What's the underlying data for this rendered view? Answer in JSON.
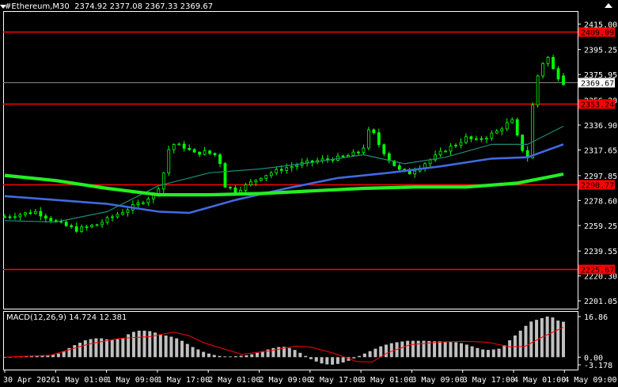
{
  "header": {
    "symbol_timeframe": "#Ethereum,M30",
    "open": "2374.92",
    "high": "2377.08",
    "low": "2367.33",
    "close": "2369.67"
  },
  "macd_header": {
    "label": "MACD(12,26,9)",
    "main": "14.724",
    "signal": "12.381"
  },
  "colors": {
    "background": "#000000",
    "candle": "#00ff00",
    "level_line": "#ff0000",
    "ma_fast": "#1e8c78",
    "ma_mid": "#4169e1",
    "ma_slow": "#22ee22",
    "histogram": "#c0c0c0",
    "signal_line": "#ff0000",
    "axis": "#ffffff"
  },
  "chart_data": [
    {
      "type": "candlestick",
      "title": "#Ethereum,M30",
      "ylim": [
        2195,
        2425
      ],
      "price_ticks": [
        "2415.00",
        "2395.25",
        "2375.95",
        "2356.20",
        "2336.90",
        "2317.65",
        "2297.85",
        "2278.60",
        "2259.25",
        "2239.55",
        "2220.30",
        "2201.05"
      ],
      "levels": [
        {
          "value": 2409.09,
          "label": "2409.09"
        },
        {
          "value": 2353.24,
          "label": "2353.24"
        },
        {
          "value": 2290.77,
          "label": "2290.77"
        },
        {
          "value": 2225.67,
          "label": "2225.67"
        }
      ],
      "current_price": {
        "value": 2369.67,
        "label": "2369.67"
      },
      "time_labels": [
        "30 Apr 2026",
        "1 May 01:00",
        "1 May 09:00",
        "1 May 17:00",
        "2 May 01:00",
        "2 May 09:00",
        "2 May 17:00",
        "3 May 01:00",
        "3 May 09:00",
        "3 May 17:00",
        "4 May 01:00",
        "4 May 09:00"
      ],
      "price_path": [
        [
          0,
          2266
        ],
        [
          6,
          2270
        ],
        [
          10,
          2262
        ],
        [
          14,
          2256
        ],
        [
          18,
          2260
        ],
        [
          22,
          2268
        ],
        [
          24,
          2272
        ],
        [
          26,
          2276
        ],
        [
          29,
          2283
        ],
        [
          30,
          2289
        ],
        [
          31,
          2300
        ],
        [
          32,
          2318
        ],
        [
          33,
          2322
        ],
        [
          35,
          2320
        ],
        [
          37,
          2315
        ],
        [
          39,
          2316
        ],
        [
          41,
          2314
        ],
        [
          42,
          2308
        ],
        [
          43,
          2290
        ],
        [
          45,
          2286
        ],
        [
          47,
          2290
        ],
        [
          50,
          2297
        ],
        [
          54,
          2303
        ],
        [
          58,
          2307
        ],
        [
          62,
          2310
        ],
        [
          66,
          2312
        ],
        [
          69,
          2316
        ],
        [
          70,
          2320
        ],
        [
          71,
          2332
        ],
        [
          72,
          2330
        ],
        [
          73,
          2322
        ],
        [
          75,
          2310
        ],
        [
          77,
          2302
        ],
        [
          79,
          2300
        ],
        [
          81,
          2305
        ],
        [
          83,
          2310
        ],
        [
          86,
          2318
        ],
        [
          88,
          2322
        ],
        [
          90,
          2327
        ],
        [
          92,
          2325
        ],
        [
          94,
          2328
        ],
        [
          96,
          2332
        ],
        [
          98,
          2338
        ],
        [
          99,
          2340
        ],
        [
          100,
          2328
        ],
        [
          101,
          2318
        ],
        [
          102,
          2312
        ],
        [
          103,
          2352
        ],
        [
          104,
          2375
        ],
        [
          105,
          2385
        ],
        [
          106,
          2389
        ],
        [
          107,
          2380
        ],
        [
          108,
          2374
        ],
        [
          109,
          2369.67
        ]
      ],
      "series": [
        {
          "name": "",
          "color": "#1e8c78",
          "values": [
            [
              0,
              2263
            ],
            [
              10,
              2262
            ],
            [
              20,
              2270
            ],
            [
              30,
              2290
            ],
            [
              40,
              2300
            ],
            [
              50,
              2303
            ],
            [
              60,
              2308
            ],
            [
              70,
              2314
            ],
            [
              78,
              2307
            ],
            [
              86,
              2312
            ],
            [
              95,
              2322
            ],
            [
              102,
              2322
            ],
            [
              109,
              2336
            ]
          ]
        },
        {
          "name": "",
          "color": "#4169e1",
          "values": [
            [
              0,
              2282
            ],
            [
              10,
              2279
            ],
            [
              20,
              2276
            ],
            [
              30,
              2270
            ],
            [
              36,
              2269
            ],
            [
              45,
              2279
            ],
            [
              55,
              2288
            ],
            [
              65,
              2296
            ],
            [
              75,
              2300
            ],
            [
              85,
              2305
            ],
            [
              95,
              2311
            ],
            [
              102,
              2312
            ],
            [
              109,
              2322
            ]
          ]
        },
        {
          "name": "",
          "color": "#22ee22",
          "values": [
            [
              0,
              2298
            ],
            [
              10,
              2294
            ],
            [
              20,
              2288
            ],
            [
              30,
              2283
            ],
            [
              40,
              2283
            ],
            [
              50,
              2284
            ],
            [
              60,
              2286
            ],
            [
              70,
              2288
            ],
            [
              80,
              2289
            ],
            [
              90,
              2289
            ],
            [
              100,
              2292
            ],
            [
              109,
              2299
            ]
          ]
        }
      ]
    },
    {
      "type": "bar",
      "title": "MACD(12,26,9)",
      "ylim": [
        -4.5,
        18.5
      ],
      "ticks": [
        "16.86",
        "0.00",
        "-3.178"
      ],
      "histogram": [
        0,
        0.1,
        0.2,
        0.3,
        0.4,
        0.5,
        0.6,
        0.8,
        0.9,
        1,
        1.5,
        2.5,
        3.8,
        5,
        6,
        7,
        7.5,
        7.8,
        7.8,
        7.4,
        7.2,
        7.5,
        8,
        9.5,
        10.5,
        11,
        11,
        10.8,
        10.2,
        9.5,
        9,
        8.5,
        7.8,
        6.8,
        5.5,
        4.2,
        3.2,
        2.2,
        1.5,
        0.9,
        0.5,
        0.3,
        0.3,
        0.4,
        0.6,
        0.8,
        1.2,
        1.8,
        2.5,
        3.2,
        3.8,
        4.2,
        4.3,
        3.8,
        3,
        1.8,
        0.5,
        -0.8,
        -1.8,
        -2.6,
        -3,
        -3.1,
        -2.8,
        -2.2,
        -1.5,
        -0.5,
        0.5,
        1.5,
        2.5,
        3.5,
        4.5,
        5.2,
        5.8,
        6.2,
        6.5,
        6.8,
        6.8,
        6.8,
        6.8,
        6.7,
        6.6,
        6.6,
        6.5,
        6.4,
        6.2,
        5.8,
        5.2,
        4.5,
        3.8,
        3.2,
        3,
        3.2,
        3.5,
        5,
        7,
        9,
        11,
        13,
        14.8,
        15.5,
        16.2,
        16.86,
        16.5,
        15.2,
        14.72
      ],
      "signal": [
        [
          0,
          0
        ],
        [
          12,
          0.8
        ],
        [
          22,
          5.5
        ],
        [
          30,
          7.8
        ],
        [
          38,
          8.5
        ],
        [
          44,
          10.4
        ],
        [
          48,
          9
        ],
        [
          52,
          6
        ],
        [
          56,
          4
        ],
        [
          62,
          1.2
        ],
        [
          70,
          2.8
        ],
        [
          76,
          4.6
        ],
        [
          80,
          4.2
        ],
        [
          86,
          1.6
        ],
        [
          92,
          -1.8
        ],
        [
          96,
          -2
        ],
        [
          100,
          1.8
        ],
        [
          106,
          5.2
        ],
        [
          114,
          6.3
        ],
        [
          120,
          6.6
        ],
        [
          126,
          6.2
        ],
        [
          132,
          4.3
        ],
        [
          136,
          4.5
        ],
        [
          140,
          8
        ],
        [
          146,
          12.38
        ]
      ]
    }
  ]
}
